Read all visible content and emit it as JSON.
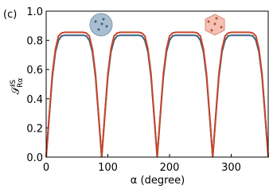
{
  "chart_data": {
    "type": "line",
    "panel_label": "(c)",
    "x_label": "α (degree)",
    "y_label": "𝒮",
    "y_label_sup": "IS",
    "y_label_sub": "Rα",
    "x": [
      0,
      5,
      10,
      15,
      20,
      25,
      30,
      35,
      40,
      45,
      50,
      55,
      60,
      65,
      70,
      75,
      80,
      85,
      90,
      95,
      100,
      105,
      110,
      115,
      120,
      125,
      130,
      135,
      140,
      145,
      150,
      155,
      160,
      165,
      170,
      175,
      180,
      185,
      190,
      195,
      200,
      205,
      210,
      215,
      220,
      225,
      230,
      235,
      240,
      245,
      250,
      255,
      260,
      265,
      270,
      275,
      280,
      285,
      290,
      295,
      300,
      305,
      310,
      315,
      320,
      325,
      330,
      335,
      340,
      345,
      350,
      355,
      360
    ],
    "series": [
      {
        "color": "#3b6180",
        "values": [
          0,
          0.28,
          0.55,
          0.72,
          0.8,
          0.83,
          0.835,
          0.835,
          0.835,
          0.835,
          0.835,
          0.835,
          0.835,
          0.83,
          0.8,
          0.72,
          0.55,
          0.28,
          0,
          0.28,
          0.55,
          0.72,
          0.8,
          0.83,
          0.835,
          0.835,
          0.835,
          0.835,
          0.835,
          0.835,
          0.835,
          0.83,
          0.8,
          0.72,
          0.55,
          0.28,
          0,
          0.28,
          0.55,
          0.72,
          0.8,
          0.83,
          0.835,
          0.835,
          0.835,
          0.835,
          0.835,
          0.835,
          0.835,
          0.83,
          0.8,
          0.72,
          0.55,
          0.28,
          0,
          0.28,
          0.55,
          0.72,
          0.8,
          0.83,
          0.835,
          0.835,
          0.835,
          0.835,
          0.835,
          0.835,
          0.835,
          0.83,
          0.8,
          0.72,
          0.55,
          0.28,
          0
        ]
      },
      {
        "color": "#c8452a",
        "values": [
          0,
          0.29,
          0.57,
          0.74,
          0.83,
          0.85,
          0.855,
          0.855,
          0.855,
          0.855,
          0.855,
          0.855,
          0.855,
          0.85,
          0.83,
          0.74,
          0.57,
          0.29,
          0,
          0.29,
          0.57,
          0.74,
          0.83,
          0.85,
          0.855,
          0.855,
          0.855,
          0.855,
          0.855,
          0.855,
          0.855,
          0.85,
          0.83,
          0.74,
          0.57,
          0.29,
          0,
          0.29,
          0.57,
          0.74,
          0.83,
          0.85,
          0.855,
          0.855,
          0.855,
          0.855,
          0.855,
          0.855,
          0.855,
          0.85,
          0.83,
          0.74,
          0.57,
          0.29,
          0,
          0.29,
          0.57,
          0.74,
          0.83,
          0.85,
          0.855,
          0.855,
          0.855,
          0.855,
          0.855,
          0.855,
          0.855,
          0.85,
          0.83,
          0.74,
          0.57,
          0.29,
          0
        ]
      }
    ],
    "xlim": [
      0,
      360
    ],
    "xticks": [
      0,
      100,
      200,
      300
    ],
    "ylim": [
      0,
      1
    ],
    "yticks": [
      {
        "value": 0,
        "label": "0.0"
      },
      0.2,
      0.4,
      0.6,
      0.8,
      {
        "value": 1,
        "label": "1.0"
      }
    ]
  }
}
